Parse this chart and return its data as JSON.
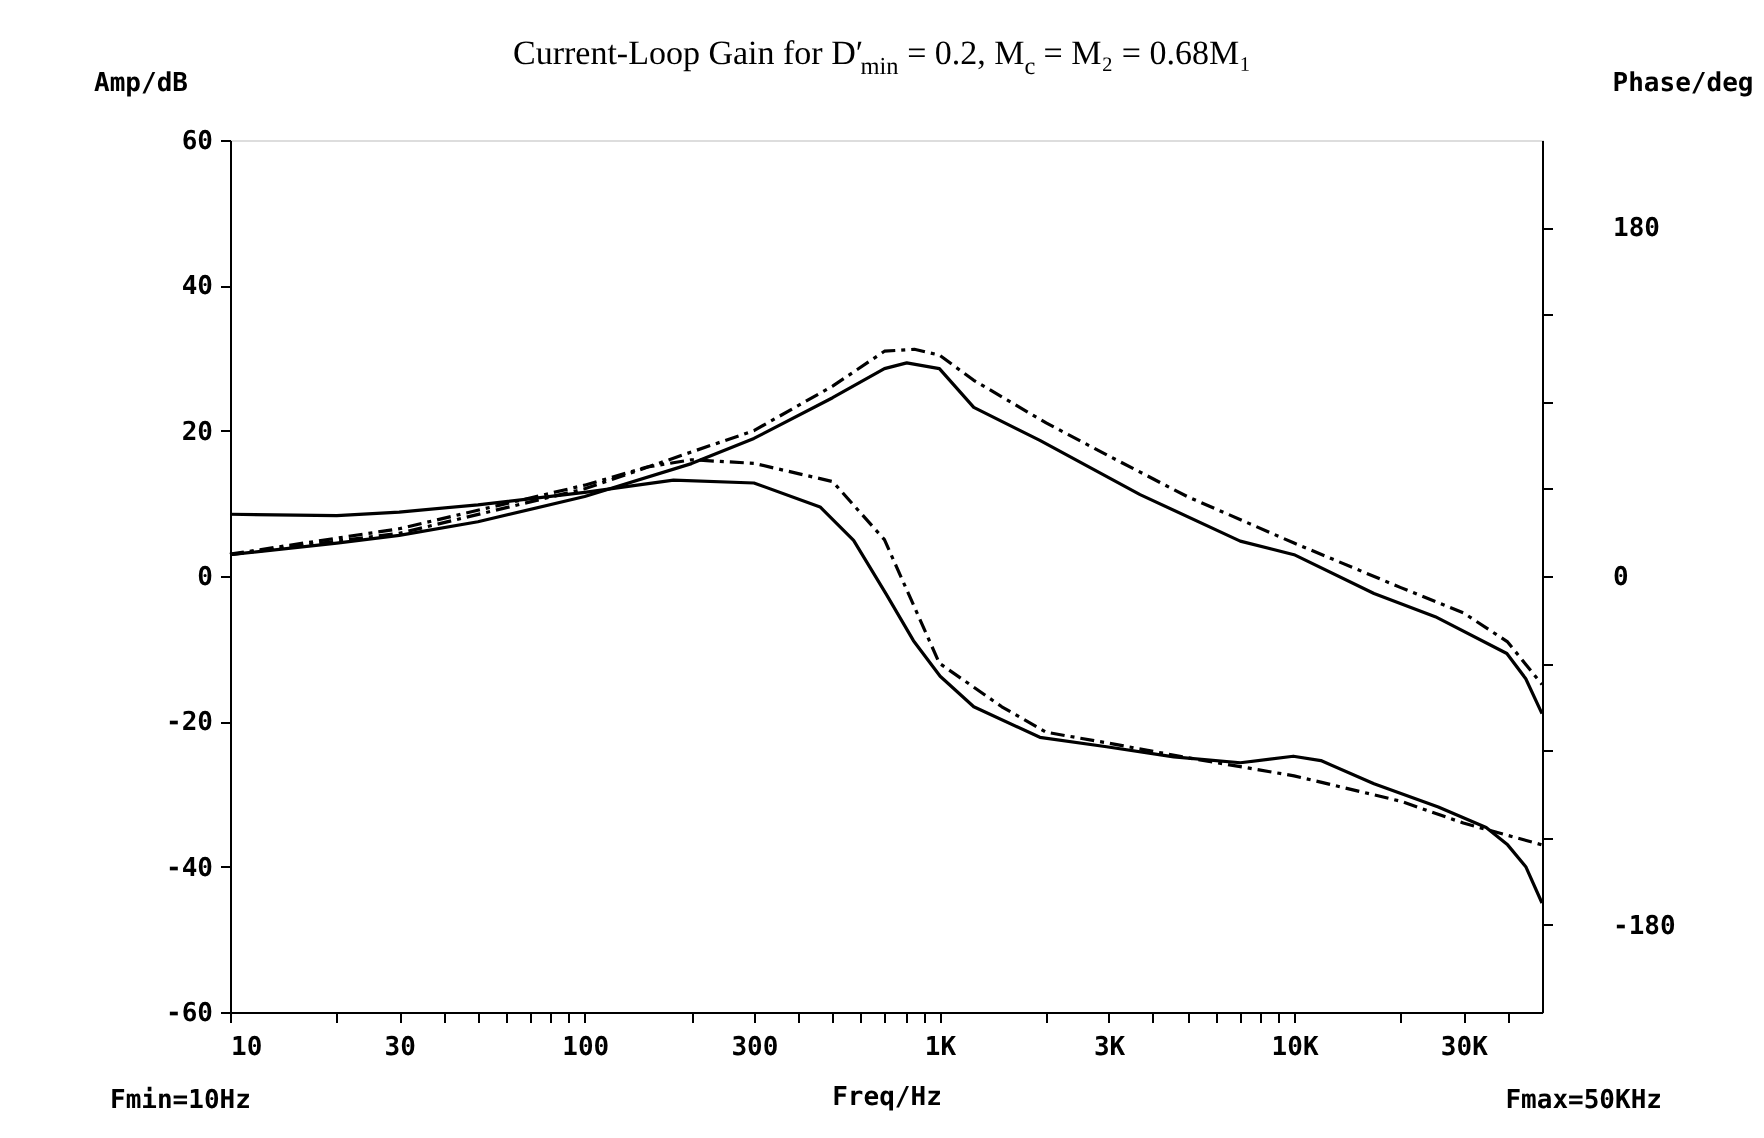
{
  "chart_data": {
    "type": "line",
    "title": "Current-Loop Gain for D′$_{min}$ = 0.2, M$_{c}$ = M₂ = 0.68M₁",
    "xlabel": "Freq/Hz",
    "ylabel": "Amp/dB",
    "y2label": "Phase/deg",
    "annotations": [
      "Fmin=10Hz",
      "Fmax=50KHz"
    ],
    "log": "x",
    "grid": false,
    "legend": false,
    "xlim": [
      10,
      50000
    ],
    "xticks": [
      10,
      {
        "value": 20,
        "label": null
      },
      30,
      {
        "value": 40,
        "label": null
      },
      {
        "value": 50,
        "label": null
      },
      {
        "value": 60,
        "label": null
      },
      {
        "value": 70,
        "label": null
      },
      {
        "value": 80,
        "label": null
      },
      {
        "value": 90,
        "label": null
      },
      100,
      {
        "value": 200,
        "label": null
      },
      300,
      {
        "value": 400,
        "label": null
      },
      {
        "value": 500,
        "label": null
      },
      {
        "value": 600,
        "label": null
      },
      {
        "value": 700,
        "label": null
      },
      {
        "value": 800,
        "label": null
      },
      {
        "value": 900,
        "label": null
      },
      {
        "value": 1000,
        "label": "1K"
      },
      {
        "value": 2000,
        "label": null
      },
      {
        "value": 3000,
        "label": "3K"
      },
      {
        "value": 4000,
        "label": null
      },
      {
        "value": 5000,
        "label": null
      },
      {
        "value": 6000,
        "label": null
      },
      {
        "value": 7000,
        "label": null
      },
      {
        "value": 8000,
        "label": null
      },
      {
        "value": 9000,
        "label": null
      },
      {
        "value": 10000,
        "label": "10K"
      },
      {
        "value": 20000,
        "label": null
      },
      {
        "value": 30000,
        "label": "30K"
      },
      {
        "value": 40000,
        "label": null
      }
    ],
    "ylim": [
      -60,
      60
    ],
    "yticks": [
      -60,
      -40,
      -20,
      0,
      20,
      40,
      60
    ],
    "y2lim": [
      -225,
      225
    ],
    "y2ticks": [
      -180,
      {
        "value": -135,
        "label": null
      },
      {
        "value": -90,
        "label": null
      },
      {
        "value": -45,
        "label": null
      },
      0,
      {
        "value": 45,
        "label": null
      },
      {
        "value": 90,
        "label": null
      },
      {
        "value": 135,
        "label": null
      },
      180
    ],
    "series": [
      {
        "color": "#000000",
        "line_style": "solid",
        "x": [
          10,
          20,
          30,
          50,
          100,
          178,
          300,
          461,
          573,
          708,
          845,
          1005,
          1250,
          1920,
          2960,
          4580,
          7060,
          9950,
          11900,
          16800,
          25500,
          34800,
          40000,
          45000,
          50000
        ],
        "values": [
          8.5,
          8.3,
          8.8,
          9.8,
          11.5,
          13.2,
          12.8,
          9.5,
          4.9,
          -2.5,
          -8.9,
          -13.8,
          -18,
          -22.2,
          -23.5,
          -24.9,
          -25.7,
          -24.8,
          -25.4,
          -28.6,
          -31.8,
          -34.6,
          -37,
          -40,
          -45
        ]
      },
      {
        "color": "#000000",
        "line_style": "dashed",
        "x": [
          10,
          30,
          100,
          150,
          200,
          300,
          500,
          700,
          1000,
          1500,
          2000,
          3000,
          5000,
          10000,
          20000,
          30000,
          50000
        ],
        "values": [
          3,
          6.5,
          12.5,
          15,
          16,
          15.5,
          13,
          5,
          -12,
          -18,
          -21.5,
          -23,
          -25,
          -27.5,
          -31,
          -34,
          -37
        ]
      },
      {
        "color": "#000000",
        "line_style": "solid",
        "axis": "y2",
        "x": [
          10,
          20,
          30,
          50,
          100,
          200,
          300,
          500,
          700,
          809,
          1000,
          1250,
          1920,
          3680,
          7050,
          10000,
          16800,
          25000,
          39800,
          45000,
          50000
        ],
        "values": [
          11,
          17,
          21,
          28,
          41,
          58,
          71,
          92,
          107,
          110,
          107,
          87,
          70,
          42,
          18,
          11,
          -9,
          -21,
          -40,
          -53,
          -71
        ]
      },
      {
        "color": "#000000",
        "line_style": "dashed",
        "axis": "y2",
        "x": [
          10,
          30,
          100,
          200,
          300,
          500,
          700,
          850,
          1000,
          1250,
          2000,
          3000,
          5000,
          10000,
          20000,
          30000,
          40000,
          50000
        ],
        "values": [
          11,
          22,
          45,
          64,
          75,
          98,
          116,
          117,
          114,
          101,
          79,
          62,
          41,
          17,
          -6,
          -19,
          -34,
          -56
        ]
      }
    ]
  }
}
